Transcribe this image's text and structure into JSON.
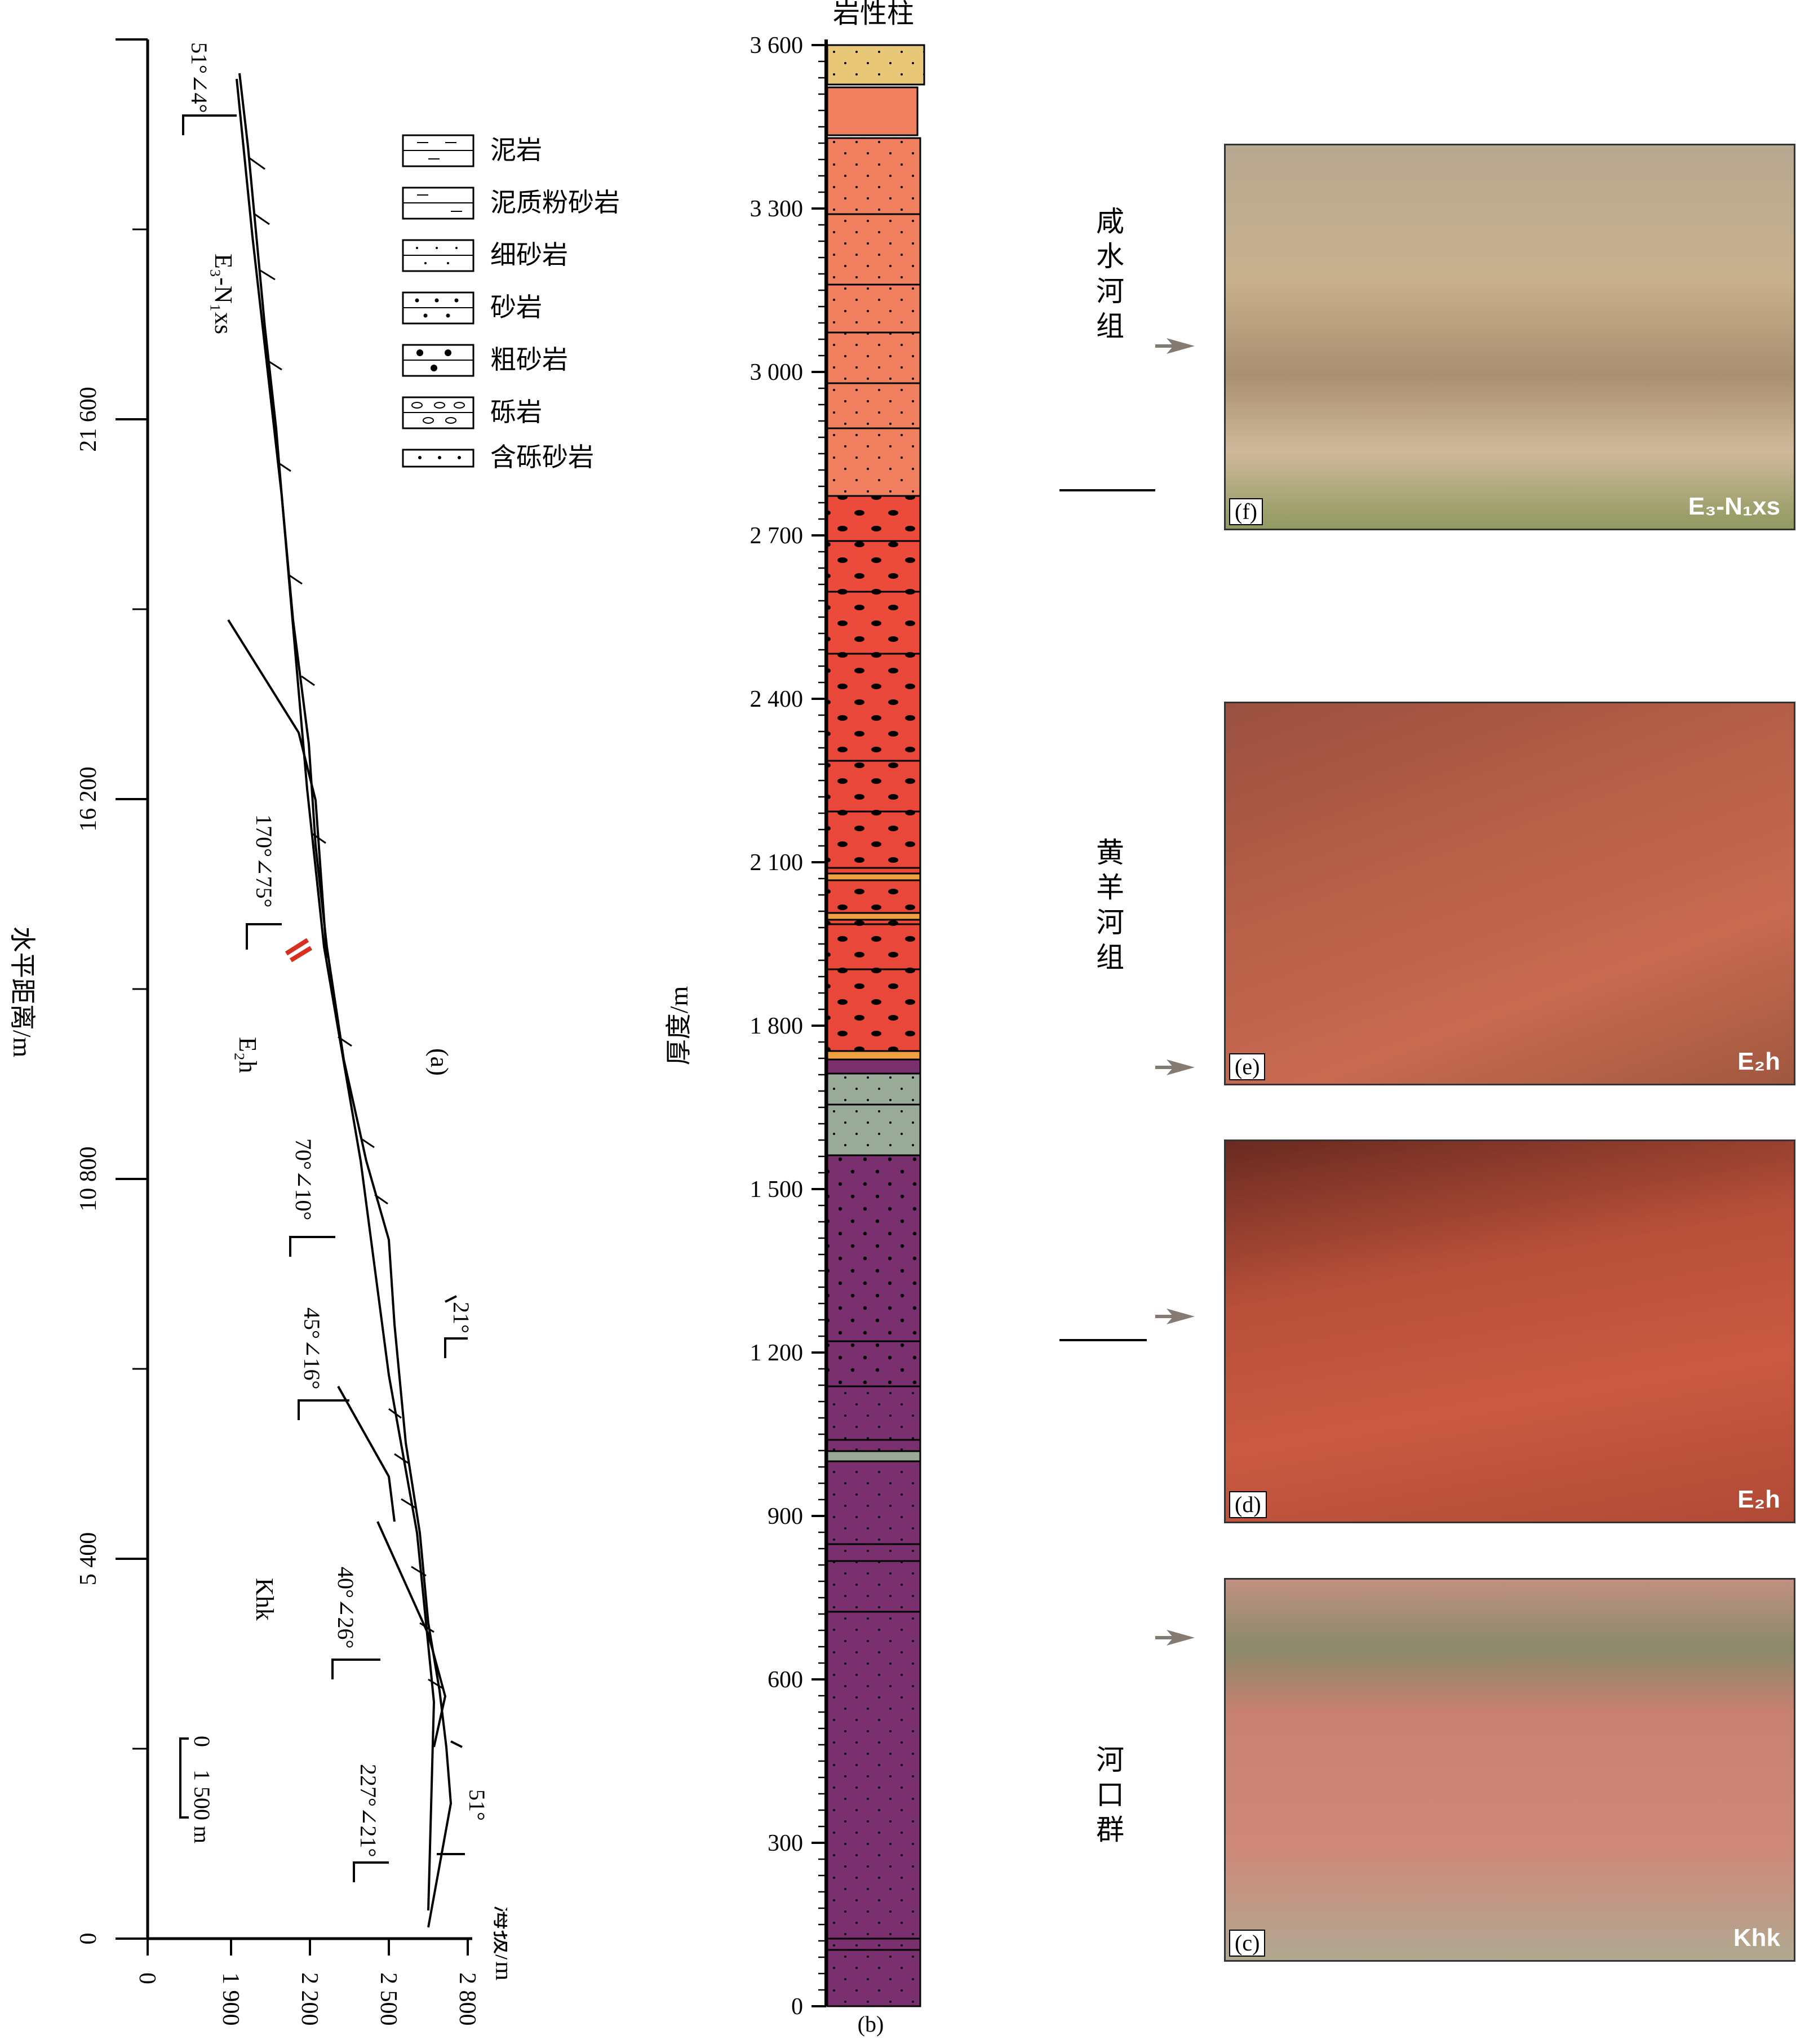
{
  "panel_a": {
    "label": "(a)",
    "y_axis_title": "水平距离/m",
    "y_ticks": [
      "0",
      "5 400",
      "10 800",
      "16 200",
      "21 600"
    ],
    "x_axis_title": "海拔/m",
    "x_ticks": [
      "0",
      "1 900",
      "2 200",
      "2 500",
      "2 800"
    ],
    "unit_labels": [
      "E₃-N₁xs",
      "E₂h",
      "Khk"
    ],
    "attitudes": [
      "51°∠4°",
      "170°∠75°",
      "70°∠10°",
      "45°∠16°",
      "40°∠26°",
      "227°∠21°"
    ],
    "dip_marks": [
      "21°",
      "51°"
    ],
    "scale_bar": "0    1 500 m"
  },
  "legend": [
    {
      "label": "泥岩",
      "pattern": "mudstone"
    },
    {
      "label": "泥质粉砂岩",
      "pattern": "silt-mud"
    },
    {
      "label": "细砂岩",
      "pattern": "fine-sand"
    },
    {
      "label": "砂岩",
      "pattern": "sand"
    },
    {
      "label": "粗砂岩",
      "pattern": "coarse-sand"
    },
    {
      "label": "砾岩",
      "pattern": "conglomerate"
    },
    {
      "label": "含砾砂岩",
      "pattern": "pebbly-sand"
    }
  ],
  "panel_b": {
    "title": "岩性柱",
    "label": "(b)",
    "y_axis_title": "厚度/m",
    "y_ticks": [
      "0",
      "300",
      "600",
      "900",
      "1 200",
      "1 500",
      "1 800",
      "2 100",
      "2 400",
      "2 700",
      "3 000",
      "3 300",
      "3 600"
    ],
    "formations": [
      "咸水河组",
      "黄羊河组",
      "河口群"
    ],
    "colors": {
      "khk": "#7a2f6e",
      "e2h": "#e8473a",
      "e3n1": "#f08060",
      "top": "#e8c878",
      "band": "#f0a040",
      "grey": "#9aaa98"
    }
  },
  "photos": [
    {
      "tag": "(f)",
      "unit": "E₃-N₁xs"
    },
    {
      "tag": "(e)",
      "unit": "E₂h"
    },
    {
      "tag": "(d)",
      "unit": "E₂h"
    },
    {
      "tag": "(c)",
      "unit": "Khk"
    }
  ]
}
